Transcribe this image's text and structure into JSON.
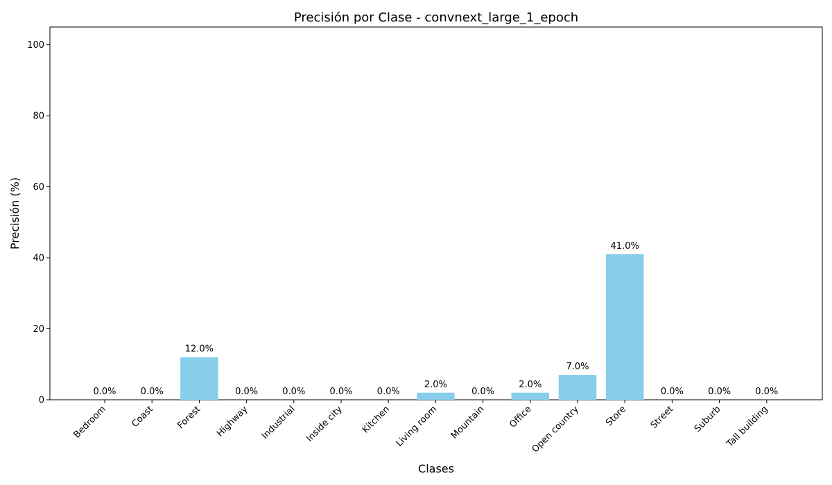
{
  "chart_data": {
    "type": "bar",
    "title": "Precisión por Clase - convnext_large_1_epoch",
    "xlabel": "Clases",
    "ylabel": "Precisión (%)",
    "ylim": [
      0,
      105
    ],
    "yticks": [
      0,
      20,
      40,
      60,
      80,
      100
    ],
    "grid": false,
    "bar_color": "#87CEEB",
    "categories": [
      "Bedroom",
      "Coast",
      "Forest",
      "Highway",
      "Industrial",
      "Inside city",
      "Kitchen",
      "Living room",
      "Mountain",
      "Office",
      "Open country",
      "Store",
      "Street",
      "Suburb",
      "Tall building"
    ],
    "values": [
      0.0,
      0.0,
      12.0,
      0.0,
      0.0,
      0.0,
      0.0,
      2.0,
      0.0,
      2.0,
      7.0,
      41.0,
      0.0,
      0.0,
      0.0
    ],
    "data_labels": [
      "0.0%",
      "0.0%",
      "12.0%",
      "0.0%",
      "0.0%",
      "0.0%",
      "0.0%",
      "2.0%",
      "0.0%",
      "2.0%",
      "7.0%",
      "41.0%",
      "0.0%",
      "0.0%",
      "0.0%"
    ]
  }
}
